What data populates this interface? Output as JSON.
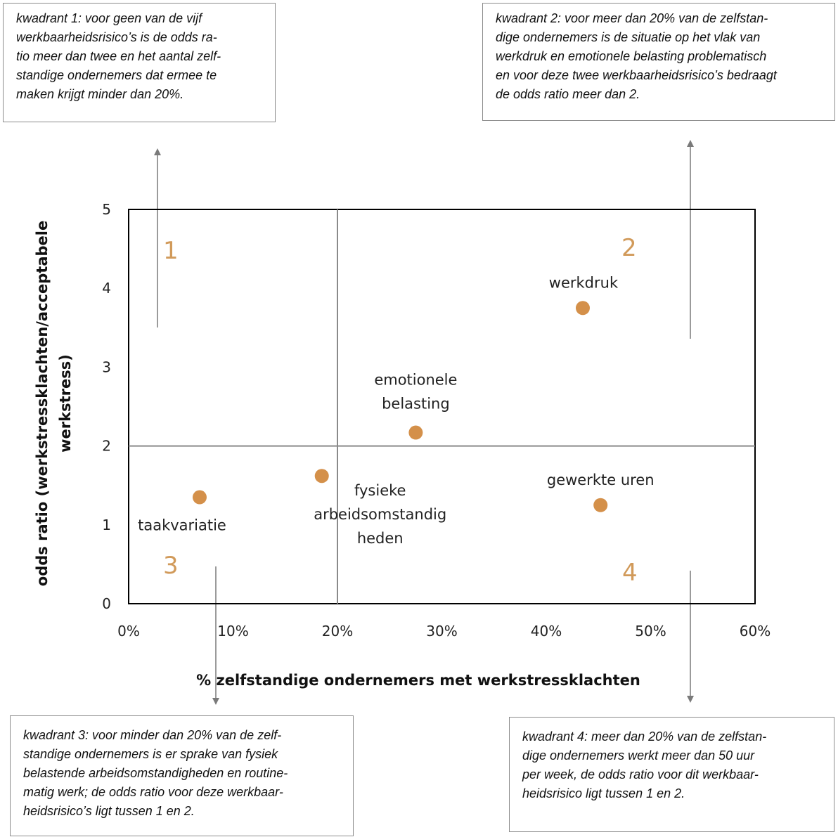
{
  "notes": {
    "q1": [
      "kwadrant 1: voor geen van de vijf",
      "werkbaarheidsrisico’s is de odds ra-",
      "tio meer dan twee en het aantal zelf-",
      "standige ondernemers dat ermee te",
      "maken krijgt minder dan 20%."
    ],
    "q2": [
      "kwadrant 2: voor meer dan 20% van de zelfstan-",
      "dige ondernemers is de situatie op het vlak van",
      "werkdruk en emotionele belasting problematisch",
      "en voor deze twee werkbaarheidsrisico’s bedraagt",
      "de odds ratio meer dan 2."
    ],
    "q3": [
      "kwadrant 3: voor minder dan 20% van de zelf-",
      "standige ondernemers is er sprake van fysiek",
      "belastende arbeidsomstandigheden en routine-",
      "matig werk; de odds ratio voor deze werkbaar-",
      "heidsrisico’s ligt tussen 1 en 2."
    ],
    "q4": [
      "kwadrant 4: meer dan 20% van de zelfstan-",
      "dige ondernemers werkt meer dan 50 uur",
      "per week, de odds ratio voor dit werkbaar-",
      "heidsrisico ligt tussen 1 en 2."
    ]
  },
  "quadrant_numbers": [
    "1",
    "2",
    "3",
    "4"
  ],
  "chart_data": {
    "type": "scatter",
    "xlabel": "% zelfstandige ondernemers met werkstressklachten",
    "ylabel": [
      "odds ratio (werkstressklachten/acceptabele",
      "werkstress)"
    ],
    "xlim": [
      0,
      60
    ],
    "ylim": [
      0,
      5
    ],
    "x_ticks": [
      "0%",
      "10%",
      "20%",
      "30%",
      "40%",
      "50%",
      "60%"
    ],
    "y_ticks": [
      "0",
      "1",
      "2",
      "3",
      "4",
      "5"
    ],
    "reference_lines": {
      "x": 20,
      "y": 2
    },
    "marker_color": "#d4904a",
    "points": [
      {
        "label": [
          "taakvariatie"
        ],
        "x": 6.8,
        "y": 1.35
      },
      {
        "label": [
          "fysieke",
          "arbeidsomstandig",
          "heden"
        ],
        "x": 18.5,
        "y": 1.62
      },
      {
        "label": [
          "emotionele",
          "belasting"
        ],
        "x": 27.5,
        "y": 2.17
      },
      {
        "label": [
          "werkdruk"
        ],
        "x": 43.5,
        "y": 3.75
      },
      {
        "label": [
          "gewerkte uren"
        ],
        "x": 45.2,
        "y": 1.25
      }
    ]
  }
}
